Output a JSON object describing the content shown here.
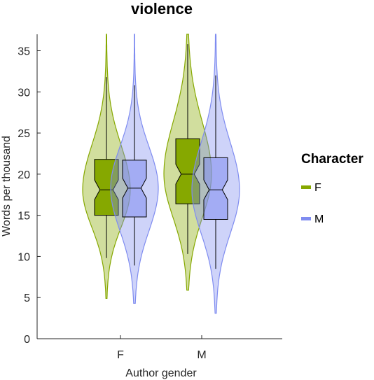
{
  "chart_data": {
    "type": "violin",
    "title": "violence",
    "xlabel": "Author gender",
    "ylabel": "Words per thousand",
    "ylim": [
      0,
      37
    ],
    "yticks": [
      0,
      5,
      10,
      15,
      20,
      25,
      30,
      35
    ],
    "categories": [
      "F",
      "M"
    ],
    "legend": {
      "title": "Character",
      "position": "right"
    },
    "series": [
      {
        "name": "F",
        "color": "#86a800",
        "groups": [
          {
            "category": "F",
            "min": 4.9,
            "q1": 15.0,
            "median": 18.1,
            "q3": 21.8,
            "max": 37.0,
            "whisker_low": 9.8,
            "whisker_high": 31.8
          },
          {
            "category": "M",
            "min": 5.9,
            "q1": 16.4,
            "median": 20.0,
            "q3": 24.3,
            "max": 37.0,
            "whisker_low": 10.3,
            "whisker_high": 35.8
          }
        ]
      },
      {
        "name": "M",
        "color": "#7f8cf0",
        "groups": [
          {
            "category": "F",
            "min": 4.3,
            "q1": 14.8,
            "median": 18.3,
            "q3": 21.7,
            "max": 37.0,
            "whisker_low": 8.9,
            "whisker_high": 30.8
          },
          {
            "category": "M",
            "min": 3.1,
            "q1": 14.5,
            "median": 18.1,
            "q3": 22.0,
            "max": 37.0,
            "whisker_low": 8.5,
            "whisker_high": 32.0
          }
        ]
      }
    ]
  }
}
